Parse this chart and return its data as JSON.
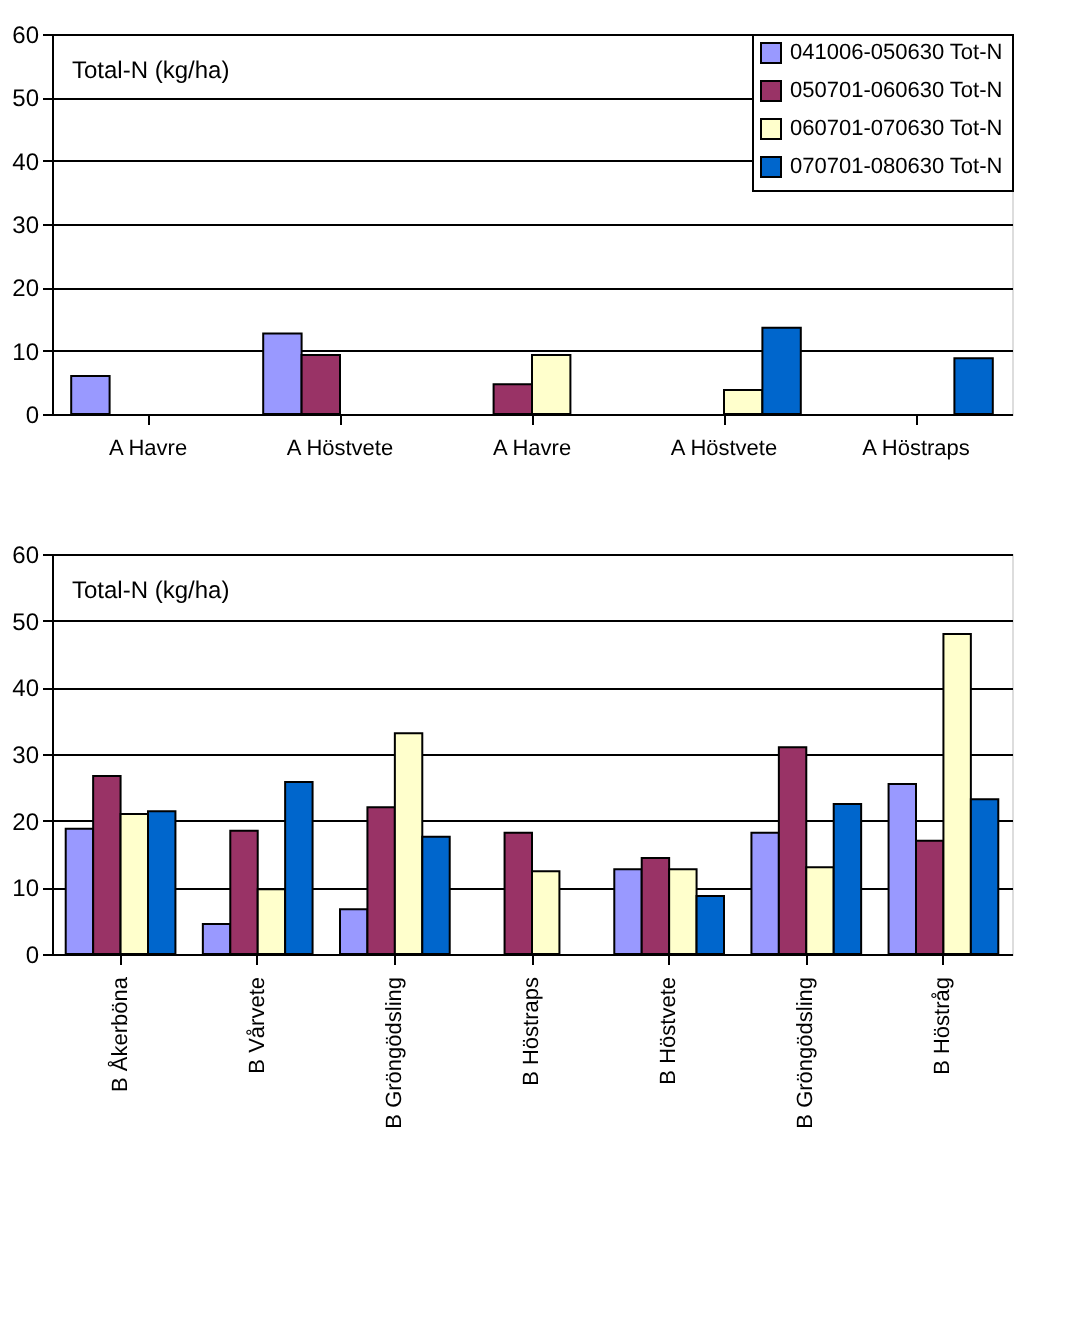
{
  "chart_data": [
    {
      "type": "bar",
      "categories": [
        "A Havre",
        "A Höstvete",
        "A Havre",
        "A Höstvete",
        "A Höstraps"
      ],
      "ylim": [
        0,
        60
      ],
      "yticks": [
        0,
        10,
        20,
        30,
        40,
        50,
        60
      ],
      "grid": "y",
      "legend": "top right",
      "annotations": [
        "Total-N (kg/ha)"
      ],
      "series": [
        {
          "name": "041006-050630 Tot-N",
          "color": "#9999ff",
          "values": [
            6,
            12.7,
            null,
            null,
            null
          ]
        },
        {
          "name": "050701-060630 Tot-N",
          "color": "#993366",
          "values": [
            null,
            9.3,
            4.7,
            null,
            null
          ]
        },
        {
          "name": "060701-070630 Tot-N",
          "color": "#ffffcc",
          "values": [
            null,
            null,
            9.3,
            3.8,
            null
          ]
        },
        {
          "name": "070701-080630 Tot-N",
          "color": "#0066cc",
          "values": [
            null,
            null,
            null,
            13.6,
            8.8
          ]
        }
      ]
    },
    {
      "type": "bar",
      "categories": [
        "B Åkerböna",
        "B Vårvete",
        "B Gröngödsling",
        "B Höstraps",
        "B Höstvete",
        "B Gröngödsling",
        "B Höstråg"
      ],
      "ylim": [
        0,
        60
      ],
      "yticks": [
        0,
        10,
        20,
        30,
        40,
        50,
        60
      ],
      "grid": "y",
      "annotations": [
        "Total-N (kg/ha)"
      ],
      "series": [
        {
          "color": "#9999ff",
          "values": [
            18.8,
            4.5,
            6.7,
            null,
            12.7,
            18.2,
            25.5
          ]
        },
        {
          "color": "#993366",
          "values": [
            26.7,
            18.5,
            22,
            18.2,
            14.4,
            31,
            17
          ]
        },
        {
          "color": "#ffffcc",
          "values": [
            21,
            9.7,
            33.1,
            12.4,
            12.7,
            13,
            48
          ]
        },
        {
          "color": "#0066cc",
          "values": [
            21.4,
            25.8,
            17.6,
            null,
            8.7,
            22.5,
            23.2
          ]
        }
      ]
    }
  ]
}
